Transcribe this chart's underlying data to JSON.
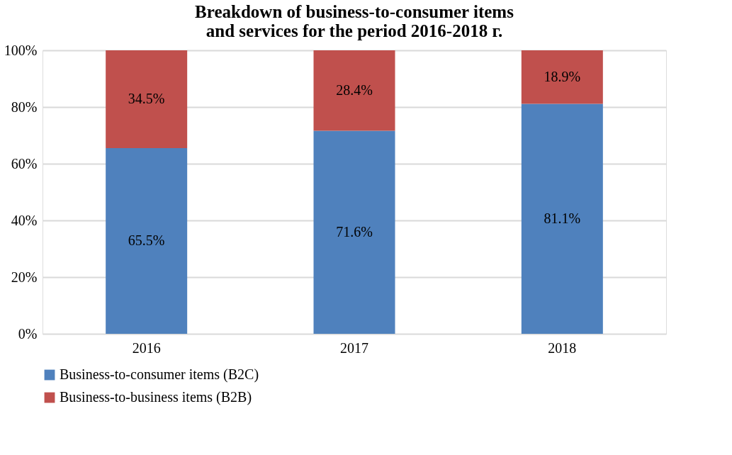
{
  "chart_data": {
    "type": "bar",
    "title": "Breakdown of business-to-consumer items and services for the period 2016-2018 г.",
    "categories": [
      "2016",
      "2017",
      "2018"
    ],
    "stacked": true,
    "series": [
      {
        "name": "Business-to-consumer items (B2C)",
        "color": "#4f81bd",
        "values": [
          65.5,
          71.6,
          81.1
        ],
        "value_labels": [
          "65.5%",
          "71.6%",
          "81.1%"
        ]
      },
      {
        "name": "Business-to-business items (B2B)",
        "color": "#c0504d",
        "values": [
          34.5,
          28.4,
          18.9
        ],
        "value_labels": [
          "34.5%",
          "28.4%",
          "18.9%"
        ]
      }
    ],
    "ylim": [
      0,
      100
    ],
    "yticks": [
      {
        "value": 0,
        "label": "0%"
      },
      {
        "value": 20,
        "label": "20%"
      },
      {
        "value": 40,
        "label": "40%"
      },
      {
        "value": 60,
        "label": "60%"
      },
      {
        "value": 80,
        "label": "80%"
      },
      {
        "value": 100,
        "label": "100%"
      }
    ],
    "grid": "y",
    "legend": "bottom"
  }
}
